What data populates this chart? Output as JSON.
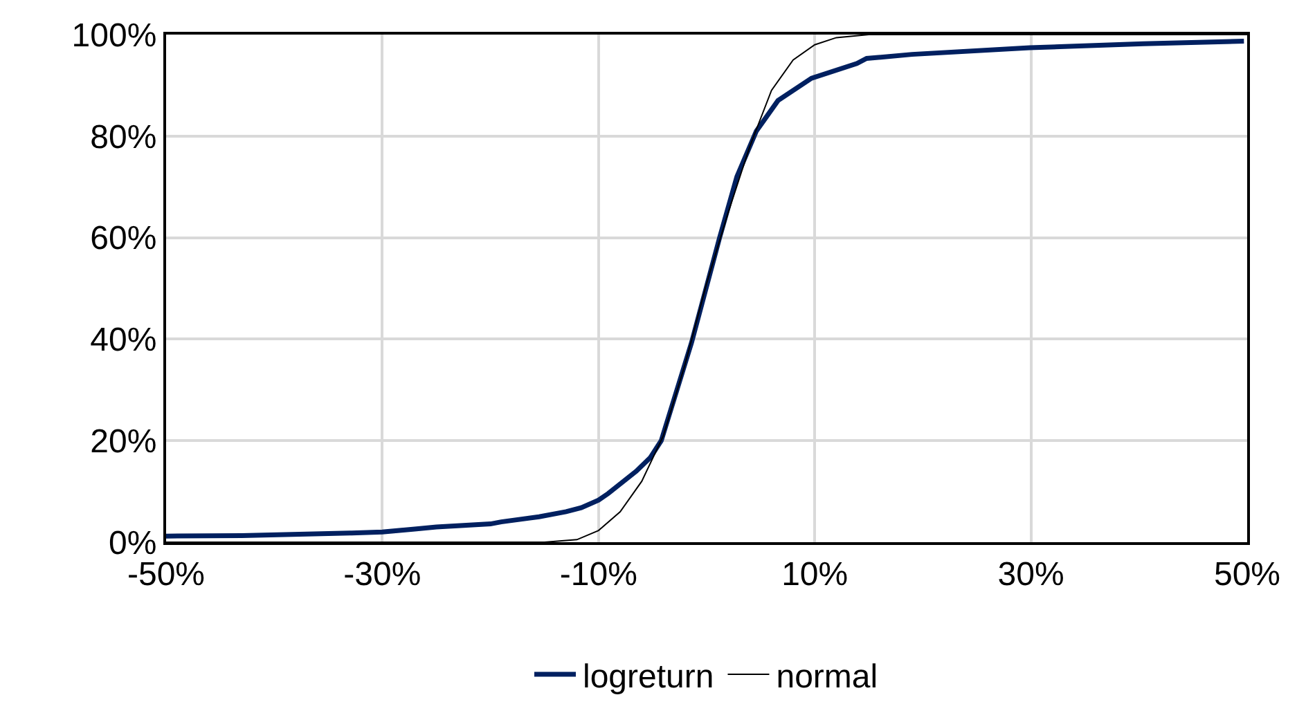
{
  "chart_data": {
    "type": "line",
    "xlim": [
      -50,
      50
    ],
    "xticks": [
      {
        "value": -50,
        "label": "-50%"
      },
      {
        "value": -30,
        "label": "-30%"
      },
      {
        "value": -10,
        "label": "-10%"
      },
      {
        "value": 10,
        "label": "10%"
      },
      {
        "value": 30,
        "label": "30%"
      },
      {
        "value": 50,
        "label": "50%"
      }
    ],
    "ylim": [
      0,
      100
    ],
    "yticks": [
      {
        "value": 0,
        "label": "0%"
      },
      {
        "value": 20,
        "label": "20%"
      },
      {
        "value": 40,
        "label": "40%"
      },
      {
        "value": 60,
        "label": "60%"
      },
      {
        "value": 80,
        "label": "80%"
      },
      {
        "value": 100,
        "label": "100%"
      }
    ],
    "grid": true,
    "legend": "bottom",
    "marker": "none",
    "line_style": "solid",
    "series": [
      {
        "name": "logreturn",
        "color": "#002060",
        "x": [
          -50,
          -43,
          -33,
          -30,
          -27,
          -25,
          -20,
          -19,
          -15.5,
          -13,
          -11.6,
          -10,
          -9.1,
          -6.5,
          -5.2,
          -4.2,
          -1.4,
          1.2,
          2.8,
          4.6,
          6.6,
          9.7,
          13.9,
          14.8,
          19,
          29.9,
          40.4,
          49.7
        ],
        "values": [
          1.2,
          1.3,
          1.8,
          2.0,
          2.6,
          3.0,
          3.6,
          4.0,
          5.0,
          6.0,
          6.8,
          8.3,
          9.6,
          14.0,
          16.7,
          20,
          39.3,
          60,
          72,
          81,
          87,
          91.4,
          94.3,
          95.3,
          96.1,
          97.4,
          98.2,
          98.7
        ]
      },
      {
        "name": "normal",
        "color": "#000000",
        "x": [
          -50,
          -15,
          -12,
          -10,
          -8,
          -6,
          -4,
          -2,
          0,
          2,
          4,
          6,
          8,
          10,
          12,
          15,
          50
        ],
        "values": [
          0,
          0,
          0.5,
          2.3,
          6,
          12,
          21,
          35,
          51,
          65,
          78,
          89,
          95,
          98,
          99.4,
          100,
          100
        ]
      }
    ]
  }
}
